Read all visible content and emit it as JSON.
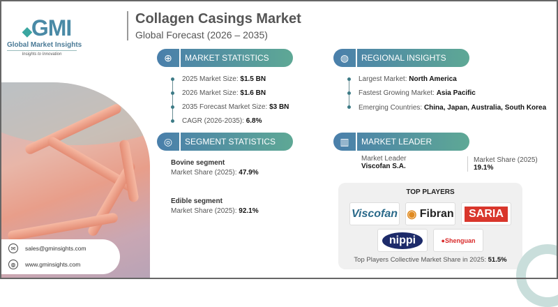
{
  "brand": {
    "logo": "GMI",
    "name": "Global Market Insights",
    "tagline": "Insights to Innovation"
  },
  "header": {
    "title": "Collagen Casings Market",
    "subtitle": "Global Forecast (2026 – 2035)"
  },
  "market_statistics": {
    "title": "MARKET STATISTICS",
    "icon": "chart-globe-icon",
    "items": [
      {
        "label": "2025 Market Size: ",
        "value": "$1.5 BN"
      },
      {
        "label": "2026 Market Size: ",
        "value": "$1.6 BN"
      },
      {
        "label": "2035 Forecast Market Size: ",
        "value": "$3 BN"
      },
      {
        "label": "CAGR (2026-2035): ",
        "value": "6.8%"
      }
    ]
  },
  "regional_insights": {
    "title": "REGIONAL INSIGHTS",
    "icon": "globe-icon",
    "items": [
      {
        "label": "Largest Market: ",
        "value": "North America"
      },
      {
        "label": "Fastest Growing Market: ",
        "value": "Asia Pacific"
      },
      {
        "label": "Emerging Countries: ",
        "value": "China, Japan, Australia, South Korea"
      }
    ]
  },
  "segment_statistics": {
    "title": "SEGMENT STATISTICS",
    "icon": "target-icon",
    "items": [
      {
        "name": "Bovine segment",
        "label": "Market Share (2025): ",
        "value": "47.9%"
      },
      {
        "name": "Edible segment",
        "label": "Market Share (2025): ",
        "value": "92.1%"
      }
    ]
  },
  "market_leader": {
    "title": "MARKET LEADER",
    "icon": "building-chart-icon",
    "leader_label": "Market Leader",
    "leader": "Viscofan S.A.",
    "share_label": "Market Share (2025)",
    "share": "19.1%"
  },
  "top_players": {
    "title": "TOP PLAYERS",
    "logos": [
      "Viscofan",
      "Fibran",
      "SARIA",
      "nippi",
      "Shenguan"
    ],
    "collective_label": "Top Players Collective Market Share in 2025: ",
    "collective_value": "51.5%"
  },
  "contact": {
    "email": "sales@gminsights.com",
    "website": "www.gminsights.com"
  },
  "colors": {
    "header_start": "#4a7fab",
    "header_end": "#5ea895",
    "dot": "#3d7b86"
  }
}
